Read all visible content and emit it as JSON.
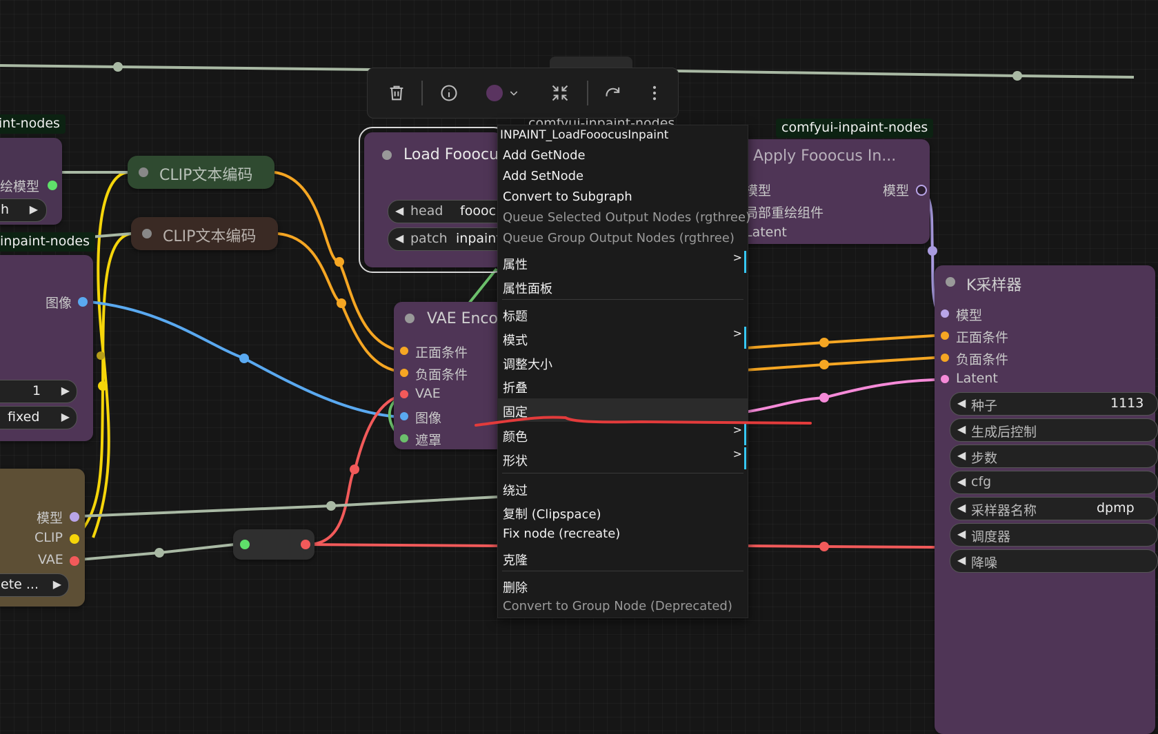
{
  "toolbar": {
    "icons": [
      "trash-icon",
      "info-icon",
      "color-picker-icon",
      "chevron-down-icon",
      "collapse-icon",
      "redo-icon",
      "more-vertical-icon"
    ],
    "color_swatch": "#5a3460"
  },
  "badges": {
    "left_top": "int-nodes",
    "left_mid": "inpaint-nodes",
    "right_top": "comfyui-inpaint-nodes",
    "middle_hidden": "comfyui-inpaint-nodes"
  },
  "nodes": {
    "left_top": {
      "output_label": "绘模型",
      "widget_text": "h"
    },
    "clip1": {
      "title": "CLIP文本编码"
    },
    "clip2": {
      "title": "CLIP文本编码"
    },
    "left_mid": {
      "output_label": "图像",
      "w1_value": "1",
      "w2_value": "fixed"
    },
    "left_bottom": {
      "out1": "模型",
      "out2": "CLIP",
      "out3": "VAE",
      "widget_text": "ete ..."
    },
    "load_fooocus": {
      "title": "Load Fooocu",
      "w1_label": "head",
      "w1_value": "foooc",
      "w2_label": "patch",
      "w2_value": "inpaint"
    },
    "vae_encode": {
      "title": "VAE Enco",
      "inputs": [
        "正面条件",
        "负面条件",
        "VAE",
        "图像",
        "遮罩"
      ]
    },
    "apply_fooocus": {
      "title": "Apply Fooocus In...",
      "in1": "模型",
      "out1": "模型",
      "in2": "局部重绘组件",
      "in3": "Latent"
    },
    "ksampler": {
      "title": "K采样器",
      "inputs": [
        "模型",
        "正面条件",
        "负面条件",
        "Latent"
      ],
      "widgets": [
        {
          "label": "种子",
          "value": "1113"
        },
        {
          "label": "生成后控制",
          "value": ""
        },
        {
          "label": "步数",
          "value": ""
        },
        {
          "label": "cfg",
          "value": ""
        },
        {
          "label": "采样器名称",
          "value": "dpmp"
        },
        {
          "label": "调度器",
          "value": ""
        },
        {
          "label": "降噪",
          "value": ""
        }
      ]
    }
  },
  "context_menu": {
    "header": "INPAINT_LoadFooocusInpaint",
    "items": [
      {
        "label": "Add GetNode",
        "disabled": false,
        "submenu": false
      },
      {
        "label": "Add SetNode",
        "disabled": false,
        "submenu": false
      },
      {
        "label": "Convert to Subgraph",
        "disabled": false,
        "submenu": false
      },
      {
        "label": "Queue Selected Output Nodes (rgthree)",
        "disabled": true,
        "submenu": false
      },
      {
        "label": "Queue Group Output Nodes (rgthree)",
        "disabled": true,
        "submenu": false
      },
      {
        "label": "属性",
        "disabled": false,
        "submenu": true
      },
      {
        "label": "属性面板",
        "disabled": false,
        "submenu": false
      },
      {
        "label": "标题",
        "disabled": false,
        "submenu": false
      },
      {
        "label": "模式",
        "disabled": false,
        "submenu": true
      },
      {
        "label": "调整大小",
        "disabled": false,
        "submenu": false
      },
      {
        "label": "折叠",
        "disabled": false,
        "submenu": false
      },
      {
        "label": "固定",
        "disabled": false,
        "submenu": false,
        "highlighted": true
      },
      {
        "label": "颜色",
        "disabled": false,
        "submenu": true
      },
      {
        "label": "形状",
        "disabled": false,
        "submenu": true
      },
      {
        "label": "绕过",
        "disabled": false,
        "submenu": false
      },
      {
        "label": "复制 (Clipspace)",
        "disabled": false,
        "submenu": false
      },
      {
        "label": "Fix node (recreate)",
        "disabled": false,
        "submenu": false
      },
      {
        "label": "克隆",
        "disabled": false,
        "submenu": false
      },
      {
        "label": "删除",
        "disabled": false,
        "submenu": false
      },
      {
        "label": "Convert to Group Node (Deprecated)",
        "disabled": true,
        "submenu": false
      }
    ],
    "submenu_indicator": ">"
  },
  "colors": {
    "wire_clip": "#f5d50a",
    "wire_conditioning": "#f5a623",
    "wire_image": "#5aa9f0",
    "wire_vae": "#f25a5a",
    "wire_model": "#a9b9a4",
    "wire_latent": "#f58ad8",
    "wire_mask": "#6cc06c",
    "annotation_red": "#e33b3b"
  }
}
